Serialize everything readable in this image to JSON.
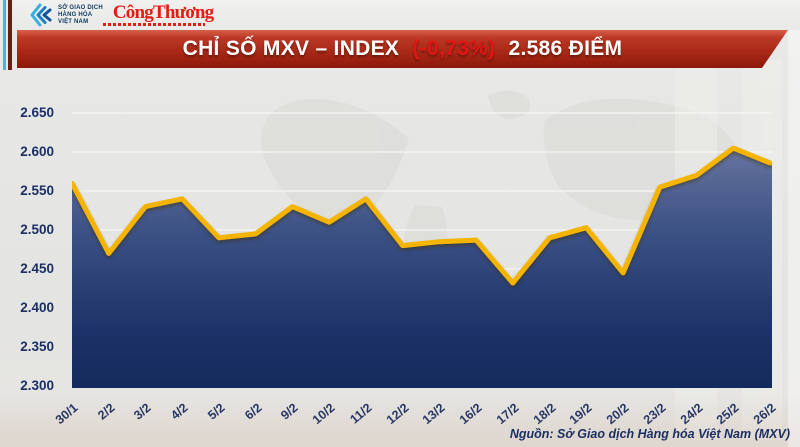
{
  "header": {
    "mxv_logo": {
      "lines": [
        "SỞ GIAO DỊCH",
        "HÀNG HÓA",
        "VIỆT NAM"
      ]
    },
    "congthuong_logo": "CôngThương"
  },
  "banner": {
    "title_prefix": "CHỈ SỐ MXV – INDEX",
    "change": "(-0,73%)",
    "title_suffix": "2.586 ĐIỂM",
    "bg_color_top": "#bc3826",
    "bg_color_bottom": "#8e190b",
    "change_color": "#e31414"
  },
  "chart_data": {
    "type": "area",
    "title": "CHỈ SỐ MXV – INDEX (-0,73%) 2.586 ĐIỂM",
    "categories": [
      "30/1",
      "2/2",
      "3/2",
      "4/2",
      "5/2",
      "6/2",
      "9/2",
      "10/2",
      "11/2",
      "12/2",
      "13/2",
      "16/2",
      "17/2",
      "18/2",
      "19/2",
      "20/2",
      "23/2",
      "24/2",
      "25/2",
      "26/2"
    ],
    "values": [
      2560,
      2470,
      2530,
      2540,
      2490,
      2495,
      2530,
      2510,
      2540,
      2480,
      2485,
      2487,
      2432,
      2490,
      2503,
      2445,
      2555,
      2570,
      2605,
      2586
    ],
    "xlabel": "",
    "ylabel": "",
    "ylim": [
      2300,
      2650
    ],
    "ytick_step": 50,
    "ytick_labels": [
      "2.650",
      "2.600",
      "2.550",
      "2.500",
      "2.450",
      "2.400",
      "2.350",
      "2.300"
    ],
    "grid": true,
    "legend": "none",
    "line_color": "#f5b400",
    "grid_color": "#f7f7f5",
    "label_color": "#1b2f63",
    "area_gradient": [
      [
        "0%",
        "#66749e"
      ],
      [
        "35%",
        "#3c5184"
      ],
      [
        "75%",
        "#1d3369"
      ],
      [
        "100%",
        "#142a5c"
      ]
    ]
  },
  "footer": {
    "source": "Nguồn: Sở Giao dịch Hàng hóa Việt Nam (MXV)"
  }
}
